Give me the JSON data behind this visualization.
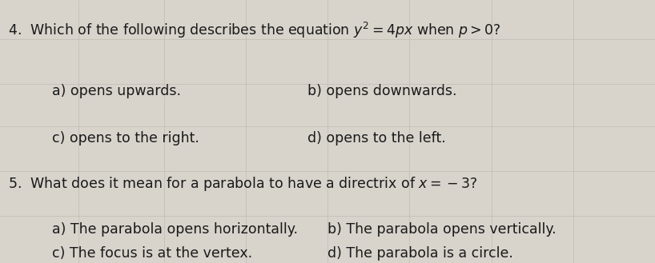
{
  "background_color": "#d8d4cc",
  "text_color": "#1a1a1a",
  "q4_a": "a) opens upwards.",
  "q4_b": "b) opens downwards.",
  "q4_c": "c) opens to the right.",
  "q4_d": "d) opens to the left.",
  "q5_a": "a) The parabola opens horizontally.",
  "q5_b": "b) The parabola opens vertically.",
  "q5_c": "c) The focus is at the vertex.",
  "q5_d": "d) The parabola is a circle.",
  "font_size_q": 12.5,
  "font_size_a": 12.5,
  "grid_color": "#b8b4ac",
  "grid_alpha": 0.6
}
